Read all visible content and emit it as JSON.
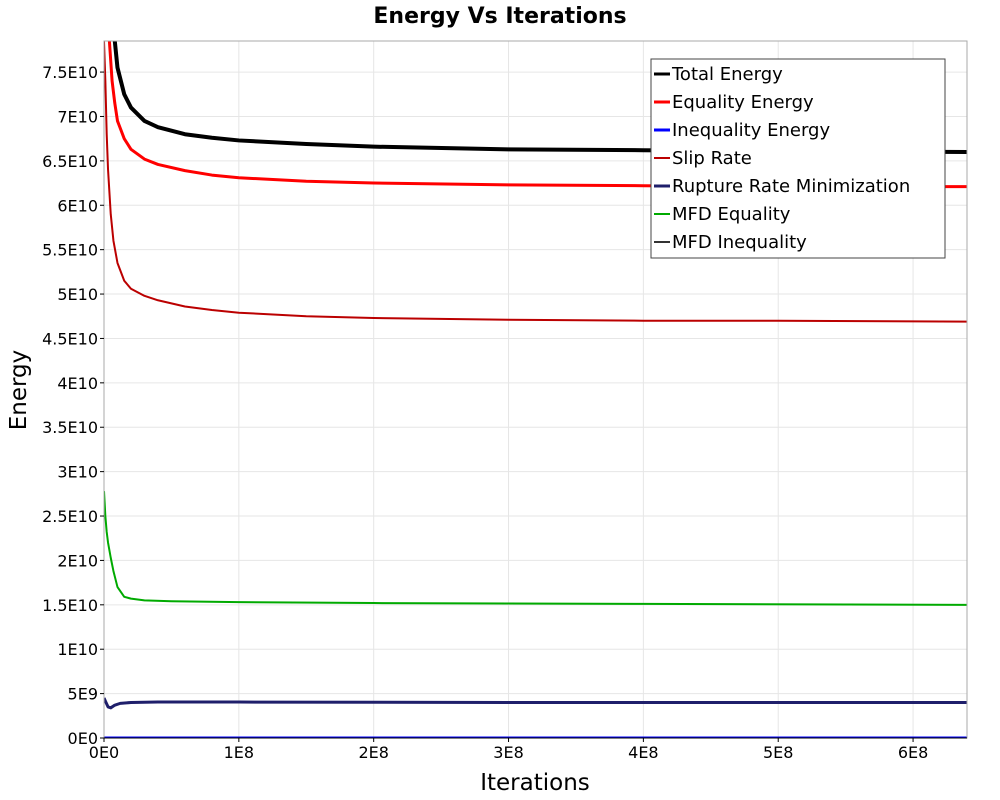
{
  "chart_data": {
    "type": "line",
    "title": "Energy Vs Iterations",
    "xlabel": "Iterations",
    "ylabel": "Energy",
    "xlim": [
      0,
      640000000
    ],
    "ylim": [
      0,
      78500000000
    ],
    "grid": true,
    "legend_position": "top-right",
    "x_ticks": [
      {
        "value": 0,
        "label": "0E0"
      },
      {
        "value": 100000000,
        "label": "1E8"
      },
      {
        "value": 200000000,
        "label": "2E8"
      },
      {
        "value": 300000000,
        "label": "3E8"
      },
      {
        "value": 400000000,
        "label": "4E8"
      },
      {
        "value": 500000000,
        "label": "5E8"
      },
      {
        "value": 600000000,
        "label": "6E8"
      }
    ],
    "y_ticks": [
      {
        "value": 0,
        "label": "0E0"
      },
      {
        "value": 5000000000,
        "label": "5E9"
      },
      {
        "value": 10000000000,
        "label": "1E10"
      },
      {
        "value": 15000000000,
        "label": "1.5E10"
      },
      {
        "value": 20000000000,
        "label": "2E10"
      },
      {
        "value": 25000000000,
        "label": "2.5E10"
      },
      {
        "value": 30000000000,
        "label": "3E10"
      },
      {
        "value": 35000000000,
        "label": "3.5E10"
      },
      {
        "value": 40000000000,
        "label": "4E10"
      },
      {
        "value": 45000000000,
        "label": "4.5E10"
      },
      {
        "value": 50000000000,
        "label": "5E10"
      },
      {
        "value": 55000000000,
        "label": "5.5E10"
      },
      {
        "value": 60000000000,
        "label": "6E10"
      },
      {
        "value": 65000000000,
        "label": "6.5E10"
      },
      {
        "value": 70000000000,
        "label": "7E10"
      },
      {
        "value": 75000000000,
        "label": "7.5E10"
      }
    ],
    "series": [
      {
        "name": "Total Energy",
        "color": "#000000",
        "width": 4,
        "x": [
          8000000,
          10000000,
          15000000,
          20000000,
          30000000,
          40000000,
          60000000,
          80000000,
          100000000,
          150000000,
          200000000,
          300000000,
          400000000,
          500000000,
          640000000
        ],
        "y": [
          78500000000,
          75500000000,
          72500000000,
          71000000000,
          69500000000,
          68800000000,
          68000000000,
          67600000000,
          67300000000,
          66900000000,
          66600000000,
          66300000000,
          66200000000,
          66100000000,
          66000000000
        ]
      },
      {
        "name": "Equality Energy",
        "color": "#ff0000",
        "width": 3,
        "x": [
          4000000,
          6000000,
          8000000,
          10000000,
          15000000,
          20000000,
          30000000,
          40000000,
          60000000,
          80000000,
          100000000,
          150000000,
          200000000,
          300000000,
          400000000,
          500000000,
          640000000
        ],
        "y": [
          78500000000,
          74000000000,
          71500000000,
          69500000000,
          67500000000,
          66300000000,
          65200000000,
          64600000000,
          63900000000,
          63400000000,
          63100000000,
          62700000000,
          62500000000,
          62300000000,
          62200000000,
          62100000000,
          62100000000
        ]
      },
      {
        "name": "Inequality Energy",
        "color": "#0000ff",
        "width": 3,
        "x": [
          0,
          640000000
        ],
        "y": [
          0,
          0
        ]
      },
      {
        "name": "Slip Rate",
        "color": "#bb0000",
        "width": 2,
        "x": [
          0,
          1000000,
          2000000,
          3000000,
          5000000,
          7000000,
          10000000,
          15000000,
          20000000,
          30000000,
          40000000,
          60000000,
          80000000,
          100000000,
          150000000,
          200000000,
          300000000,
          400000000,
          500000000,
          640000000
        ],
        "y": [
          78500000000,
          74000000000,
          68000000000,
          64000000000,
          59000000000,
          56000000000,
          53500000000,
          51500000000,
          50600000000,
          49800000000,
          49300000000,
          48600000000,
          48200000000,
          47900000000,
          47500000000,
          47300000000,
          47100000000,
          47000000000,
          47000000000,
          46900000000
        ]
      },
      {
        "name": "Rupture Rate Minimization",
        "color": "#1f1f6b",
        "width": 3,
        "x": [
          0,
          1500000,
          3000000,
          5000000,
          8000000,
          12000000,
          20000000,
          40000000,
          100000000,
          300000000,
          640000000
        ],
        "y": [
          4500000000,
          4000000000,
          3500000000,
          3400000000,
          3700000000,
          3900000000,
          4000000000,
          4050000000,
          4050000000,
          4000000000,
          4000000000
        ]
      },
      {
        "name": "MFD Equality",
        "color": "#00aa00",
        "width": 2,
        "x": [
          0,
          1000000,
          2000000,
          3000000,
          5000000,
          7000000,
          10000000,
          15000000,
          20000000,
          30000000,
          50000000,
          100000000,
          200000000,
          300000000,
          400000000,
          640000000
        ],
        "y": [
          27800000000,
          25000000000,
          23200000000,
          22000000000,
          20300000000,
          18800000000,
          17000000000,
          15900000000,
          15700000000,
          15500000000,
          15400000000,
          15300000000,
          15200000000,
          15150000000,
          15100000000,
          15000000000
        ]
      },
      {
        "name": "MFD Inequality",
        "color": "#333333",
        "width": 2,
        "x": [
          0,
          640000000
        ],
        "y": [
          0,
          0
        ]
      }
    ]
  }
}
